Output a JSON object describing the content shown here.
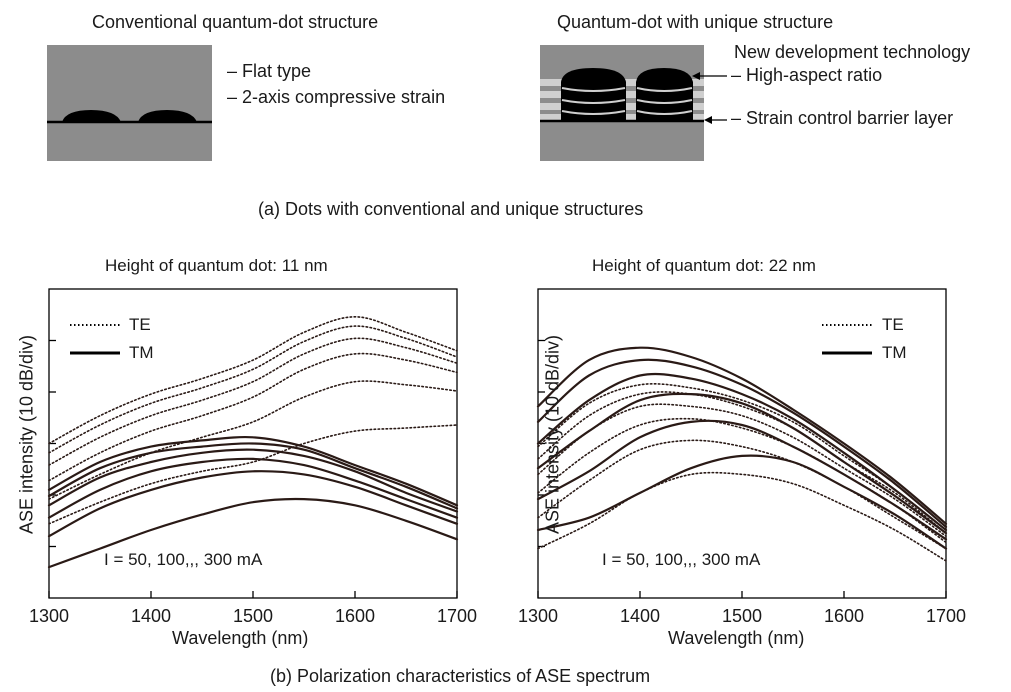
{
  "part_a": {
    "left_title": "Conventional quantum-dot structure",
    "left_notes": [
      "– Flat type",
      "– 2-axis compressive strain"
    ],
    "right_title": "Quantum-dot with unique structure",
    "right_heading": "New development technology",
    "right_notes": [
      "– High-aspect ratio",
      "– Strain control barrier layer"
    ],
    "caption": "(a) Dots with conventional and unique structures",
    "colors": {
      "substrate": "#8c8c8c",
      "dot": "#000000",
      "barrier": "#cfcfcf"
    }
  },
  "part_b": {
    "caption": "(b) Polarization characteristics of ASE spectrum"
  },
  "chart_data": [
    {
      "type": "line",
      "title": "Height of quantum dot: 11 nm",
      "xlabel": "Wavelength (nm)",
      "ylabel": "ASE intensity (10 dB/div)",
      "xlim": [
        1300,
        1700
      ],
      "xticks": [
        1300,
        1400,
        1500,
        1600,
        1700
      ],
      "legend": {
        "placement": "top-left",
        "entries": [
          {
            "name": "TE",
            "style": "dotted"
          },
          {
            "name": "TM",
            "style": "solid"
          }
        ]
      },
      "annotation": "I = 50, 100,,, 300 mA",
      "ytick_divisions": 6,
      "x": [
        1300,
        1350,
        1400,
        1450,
        1500,
        1550,
        1600,
        1650,
        1700
      ],
      "series": [
        {
          "name": "TE",
          "style": "dotted",
          "values": [
            1.2,
            1.55,
            1.85,
            2.05,
            2.2,
            2.5,
            2.7,
            2.75,
            2.8
          ]
        },
        {
          "name": "TE",
          "style": "dotted",
          "values": [
            1.6,
            2.0,
            2.35,
            2.6,
            2.85,
            3.25,
            3.5,
            3.45,
            3.35
          ]
        },
        {
          "name": "TE",
          "style": "dotted",
          "values": [
            1.9,
            2.35,
            2.7,
            2.95,
            3.25,
            3.7,
            3.95,
            3.85,
            3.65
          ]
        },
        {
          "name": "TE",
          "style": "dotted",
          "values": [
            2.15,
            2.6,
            2.95,
            3.2,
            3.5,
            3.95,
            4.2,
            4.05,
            3.8
          ]
        },
        {
          "name": "TE",
          "style": "dotted",
          "values": [
            2.35,
            2.8,
            3.15,
            3.4,
            3.7,
            4.15,
            4.4,
            4.2,
            3.9
          ]
        },
        {
          "name": "TE",
          "style": "dotted",
          "values": [
            2.5,
            2.95,
            3.3,
            3.55,
            3.85,
            4.3,
            4.55,
            4.3,
            4.0
          ]
        },
        {
          "name": "TM",
          "style": "solid",
          "values": [
            0.5,
            0.8,
            1.1,
            1.35,
            1.55,
            1.6,
            1.5,
            1.25,
            0.95
          ]
        },
        {
          "name": "TM",
          "style": "solid",
          "values": [
            1.0,
            1.45,
            1.75,
            1.95,
            2.05,
            2.0,
            1.8,
            1.5,
            1.2
          ]
        },
        {
          "name": "TM",
          "style": "solid",
          "values": [
            1.3,
            1.75,
            2.05,
            2.2,
            2.25,
            2.15,
            1.9,
            1.6,
            1.3
          ]
        },
        {
          "name": "TM",
          "style": "solid",
          "values": [
            1.5,
            1.95,
            2.2,
            2.35,
            2.4,
            2.3,
            2.05,
            1.7,
            1.4
          ]
        },
        {
          "name": "TM",
          "style": "solid",
          "values": [
            1.65,
            2.1,
            2.35,
            2.45,
            2.5,
            2.4,
            2.1,
            1.8,
            1.45
          ]
        },
        {
          "name": "TM",
          "style": "solid",
          "values": [
            1.75,
            2.2,
            2.45,
            2.55,
            2.6,
            2.45,
            2.15,
            1.85,
            1.5
          ]
        }
      ]
    },
    {
      "type": "line",
      "title": "Height of quantum dot: 22 nm",
      "xlabel": "Wavelength (nm)",
      "ylabel": "ASE intensity (10 dB/div)",
      "xlim": [
        1300,
        1700
      ],
      "xticks": [
        1300,
        1400,
        1500,
        1600,
        1700
      ],
      "legend": {
        "placement": "top-right",
        "entries": [
          {
            "name": "TE",
            "style": "dotted"
          },
          {
            "name": "TM",
            "style": "solid"
          }
        ]
      },
      "annotation": "I = 50, 100,,, 300 mA",
      "ytick_divisions": 6,
      "x": [
        1300,
        1350,
        1400,
        1450,
        1500,
        1550,
        1600,
        1650,
        1700
      ],
      "series": [
        {
          "name": "TE",
          "style": "dotted",
          "values": [
            0.8,
            1.2,
            1.7,
            2.0,
            2.0,
            1.85,
            1.5,
            1.1,
            0.6
          ]
        },
        {
          "name": "TE",
          "style": "dotted",
          "values": [
            1.3,
            1.9,
            2.4,
            2.55,
            2.45,
            2.2,
            1.8,
            1.3,
            0.8
          ]
        },
        {
          "name": "TE",
          "style": "dotted",
          "values": [
            1.7,
            2.35,
            2.8,
            2.9,
            2.75,
            2.45,
            2.0,
            1.5,
            0.9
          ]
        },
        {
          "name": "TE",
          "style": "dotted",
          "values": [
            2.0,
            2.7,
            3.1,
            3.1,
            2.95,
            2.6,
            2.1,
            1.6,
            1.0
          ]
        },
        {
          "name": "TE",
          "style": "dotted",
          "values": [
            2.25,
            2.95,
            3.3,
            3.3,
            3.1,
            2.75,
            2.2,
            1.7,
            1.05
          ]
        },
        {
          "name": "TE",
          "style": "dotted",
          "values": [
            2.45,
            3.15,
            3.45,
            3.4,
            3.2,
            2.85,
            2.3,
            1.75,
            1.1
          ]
        },
        {
          "name": "TM",
          "style": "solid",
          "values": [
            1.1,
            1.3,
            1.7,
            2.1,
            2.3,
            2.2,
            1.8,
            1.35,
            0.8
          ]
        },
        {
          "name": "TM",
          "style": "solid",
          "values": [
            1.6,
            2.05,
            2.6,
            2.85,
            2.8,
            2.45,
            2.0,
            1.5,
            0.95
          ]
        },
        {
          "name": "TM",
          "style": "solid",
          "values": [
            2.1,
            2.7,
            3.2,
            3.3,
            3.15,
            2.75,
            2.2,
            1.65,
            1.05
          ]
        },
        {
          "name": "TM",
          "style": "solid",
          "values": [
            2.5,
            3.2,
            3.6,
            3.55,
            3.3,
            2.9,
            2.35,
            1.75,
            1.1
          ]
        },
        {
          "name": "TM",
          "style": "solid",
          "values": [
            2.85,
            3.6,
            3.85,
            3.75,
            3.45,
            3.0,
            2.45,
            1.85,
            1.15
          ]
        },
        {
          "name": "TM",
          "style": "solid",
          "values": [
            3.1,
            3.85,
            4.05,
            3.9,
            3.55,
            3.05,
            2.5,
            1.9,
            1.2
          ]
        }
      ]
    }
  ]
}
